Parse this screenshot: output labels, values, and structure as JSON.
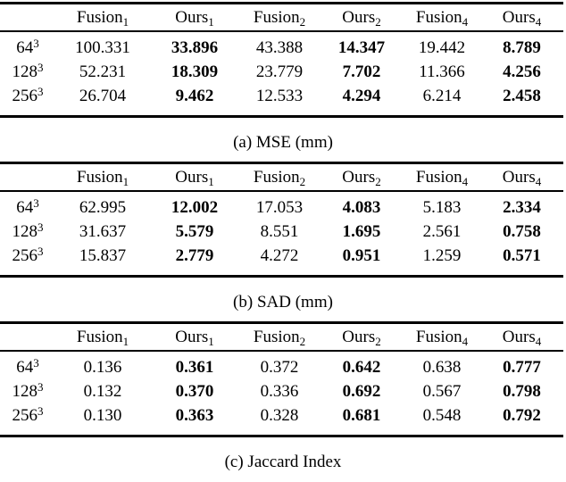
{
  "page": {
    "background_color": "#ffffff",
    "text_color": "#000000",
    "rule_color": "#000000"
  },
  "tables": [
    {
      "id": "a",
      "caption": "(a) MSE (mm)",
      "columns": [
        {
          "base": "Fusion",
          "sub": "1",
          "bold_values": false
        },
        {
          "base": "Ours",
          "sub": "1",
          "bold_values": true
        },
        {
          "base": "Fusion",
          "sub": "2",
          "bold_values": false
        },
        {
          "base": "Ours",
          "sub": "2",
          "bold_values": true
        },
        {
          "base": "Fusion",
          "sub": "4",
          "bold_values": false
        },
        {
          "base": "Ours",
          "sub": "4",
          "bold_values": true
        }
      ],
      "rows": [
        {
          "label": {
            "base": "64",
            "sup": "3"
          },
          "values": [
            "100.331",
            "33.896",
            "43.388",
            "14.347",
            "19.442",
            "8.789"
          ]
        },
        {
          "label": {
            "base": "128",
            "sup": "3"
          },
          "values": [
            "52.231",
            "18.309",
            "23.779",
            "7.702",
            "11.366",
            "4.256"
          ]
        },
        {
          "label": {
            "base": "256",
            "sup": "3"
          },
          "values": [
            "26.704",
            "9.462",
            "12.533",
            "4.294",
            "6.214",
            "2.458"
          ]
        }
      ]
    },
    {
      "id": "b",
      "caption": "(b) SAD (mm)",
      "columns": [
        {
          "base": "Fusion",
          "sub": "1",
          "bold_values": false
        },
        {
          "base": "Ours",
          "sub": "1",
          "bold_values": true
        },
        {
          "base": "Fusion",
          "sub": "2",
          "bold_values": false
        },
        {
          "base": "Ours",
          "sub": "2",
          "bold_values": true
        },
        {
          "base": "Fusion",
          "sub": "4",
          "bold_values": false
        },
        {
          "base": "Ours",
          "sub": "4",
          "bold_values": true
        }
      ],
      "rows": [
        {
          "label": {
            "base": "64",
            "sup": "3"
          },
          "values": [
            "62.995",
            "12.002",
            "17.053",
            "4.083",
            "5.183",
            "2.334"
          ]
        },
        {
          "label": {
            "base": "128",
            "sup": "3"
          },
          "values": [
            "31.637",
            "5.579",
            "8.551",
            "1.695",
            "2.561",
            "0.758"
          ]
        },
        {
          "label": {
            "base": "256",
            "sup": "3"
          },
          "values": [
            "15.837",
            "2.779",
            "4.272",
            "0.951",
            "1.259",
            "0.571"
          ]
        }
      ]
    },
    {
      "id": "c",
      "caption": "(c) Jaccard Index",
      "columns": [
        {
          "base": "Fusion",
          "sub": "1",
          "bold_values": false
        },
        {
          "base": "Ours",
          "sub": "1",
          "bold_values": true
        },
        {
          "base": "Fusion",
          "sub": "2",
          "bold_values": false
        },
        {
          "base": "Ours",
          "sub": "2",
          "bold_values": true
        },
        {
          "base": "Fusion",
          "sub": "4",
          "bold_values": false
        },
        {
          "base": "Ours",
          "sub": "4",
          "bold_values": true
        }
      ],
      "rows": [
        {
          "label": {
            "base": "64",
            "sup": "3"
          },
          "values": [
            "0.136",
            "0.361",
            "0.372",
            "0.642",
            "0.638",
            "0.777"
          ]
        },
        {
          "label": {
            "base": "128",
            "sup": "3"
          },
          "values": [
            "0.132",
            "0.370",
            "0.336",
            "0.692",
            "0.567",
            "0.798"
          ]
        },
        {
          "label": {
            "base": "256",
            "sup": "3"
          },
          "values": [
            "0.130",
            "0.363",
            "0.328",
            "0.681",
            "0.548",
            "0.792"
          ]
        }
      ]
    }
  ]
}
